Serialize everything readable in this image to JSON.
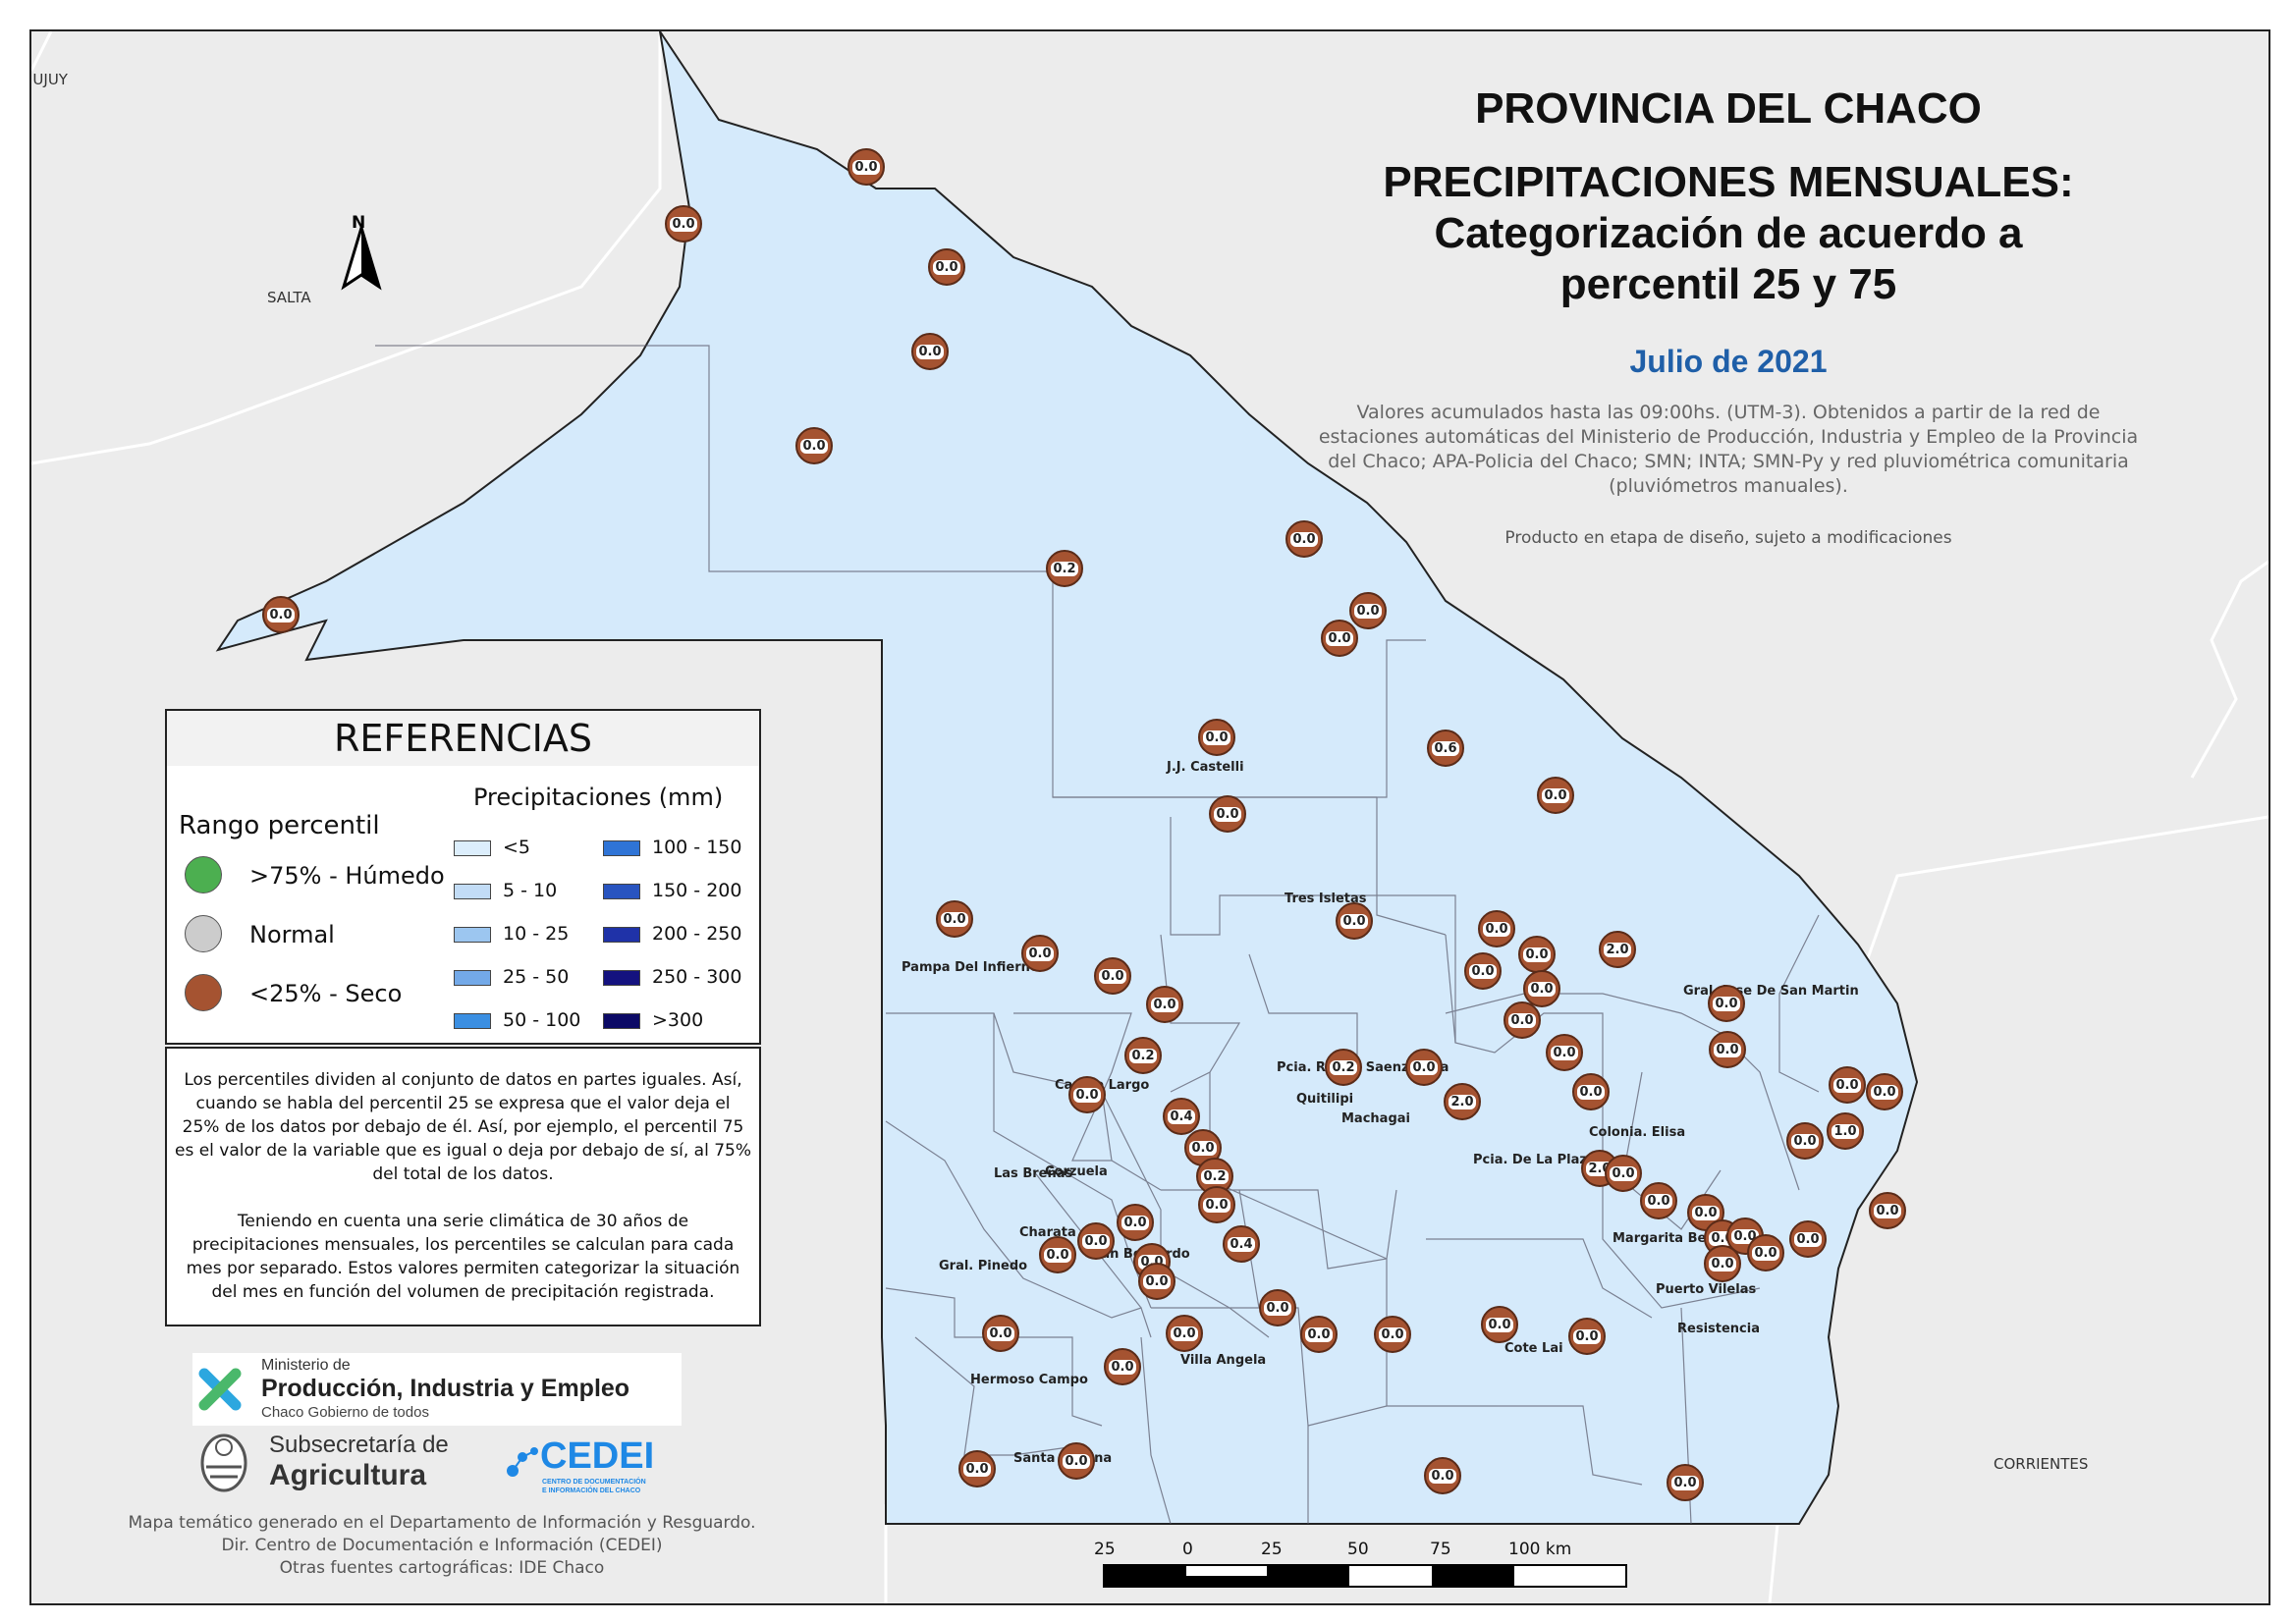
{
  "title": {
    "line1": "PROVINCIA DEL CHACO",
    "line2": "PRECIPITACIONES MENSUALES:",
    "line3": "Categorización de acuerdo a",
    "line4": "percentil 25 y 75",
    "month": "Julio de 2021"
  },
  "description": "Valores acumulados hasta las 09:00hs. (UTM-3). Obtenidos a partir de la red de estaciones automáticas del Ministerio de Producción, Industria y Empleo de la Provincia del Chaco; APA-Policia del Chaco; SMN; INTA; SMN-Py y red pluviométrica comunitaria (pluviómetros manuales).",
  "draft_note": "Producto en etapa de diseño, sujeto a modificaciones",
  "neighbors": {
    "jujuy": "JUJUY",
    "salta": "SALTA",
    "corrientes": "CORRIENTES"
  },
  "north_label": "N",
  "towns": [
    "J.J. Castelli",
    "Tres Isletas",
    "Pampa Del Infierno",
    "Pcia. Roque Saenz Peña",
    "Quitilipi",
    "Machagai",
    "Campo Largo",
    "Corzuela",
    "Las Breñas",
    "Charata",
    "Gral. Pinedo",
    "San Bernardo",
    "Villa Angela",
    "Hermoso Campo",
    "Santa Sylvina",
    "Gral. Jose De San Martin",
    "Pcia. De La Plaza",
    "Colonia. Elisa",
    "Margarita Belen",
    "Puerto Vilelas",
    "Resistencia",
    "Cote Lai"
  ],
  "stations": [
    "0.0",
    "0.0",
    "0.0",
    "0.0",
    "0.0",
    "0.0",
    "0.2",
    "0.0",
    "0.0",
    "0.0",
    "0.6",
    "0.0",
    "0.0",
    "0.0",
    "0.0",
    "0.0",
    "0.0",
    "0.0",
    "0.0",
    "0.0",
    "0.0",
    "2.0",
    "0.0",
    "0.0",
    "0.0",
    "0.2",
    "0.0",
    "2.0",
    "0.0",
    "0.0",
    "0.0",
    "0.0",
    "0.0",
    "0.0",
    "0.2",
    "0.0",
    "0.4",
    "0.0",
    "0.2",
    "0.0",
    "0.0",
    "0.0",
    "0.0",
    "0.0",
    "1.0",
    "2.0",
    "0.0",
    "0.0",
    "0.0",
    "0.0",
    "0.0",
    "0.0",
    "0.0",
    "0.0",
    "0.0",
    "0.4",
    "0.0",
    "0.0",
    "0.0",
    "0.0",
    "0.0",
    "0.0",
    "0.0",
    "0.0",
    "0.0",
    "0.0",
    "0.0",
    "0.0",
    "0.0",
    "0.0"
  ],
  "legend": {
    "title": "REFERENCIAS",
    "percentile_heading": "Rango percentil",
    "percentile_items": [
      {
        "label": ">75% - Húmedo",
        "color": "#4caf50"
      },
      {
        "label": "Normal",
        "color": "#cccccc"
      },
      {
        "label": "<25% - Seco",
        "color": "#a55331"
      }
    ],
    "precip_heading": "Precipitaciones (mm)",
    "precip_items": [
      {
        "label": "<5",
        "color": "#dceefc"
      },
      {
        "label": "5 - 10",
        "color": "#c2dcf6"
      },
      {
        "label": "10 - 25",
        "color": "#9cc6f0"
      },
      {
        "label": "25 - 50",
        "color": "#73a9e8"
      },
      {
        "label": "50 - 100",
        "color": "#3b8fe2"
      },
      {
        "label": "100 - 150",
        "color": "#2f74d6"
      },
      {
        "label": "150 - 200",
        "color": "#2854c0"
      },
      {
        "label": "200 - 250",
        "color": "#1f32a8"
      },
      {
        "label": "250 - 300",
        "color": "#14127f"
      },
      {
        "label": ">300",
        "color": "#0c0a66"
      }
    ]
  },
  "note": {
    "p1": "Los percentiles dividen al conjunto de datos en partes iguales. Así, cuando se habla del percentil 25 se expresa que el valor deja el 25% de los datos por debajo de él. Así, por ejemplo, el percentil 75 es el valor de la variable que es igual o deja por debajo de sí, al 75% del total de los datos.",
    "p2": "Teniendo en cuenta una serie climática de 30 años de precipitaciones mensuales, los percentiles se calculan para cada mes por separado. Estos valores permiten categorizar la situación del mes en función del volumen de precipitación registrada."
  },
  "logos": {
    "ministry_line1": "Ministerio de",
    "ministry_line2": "Producción, Industria y Empleo",
    "ministry_line3": "Chaco Gobierno de todos",
    "sub_line1": "Subsecretaría de",
    "sub_line2": "Agricultura",
    "cedei": "CEDEI",
    "cedei_sub1": "CENTRO DE DOCUMENTACIÓN",
    "cedei_sub2": "E INFORMACIÓN DEL CHACO"
  },
  "footer": {
    "line1": "Mapa temático generado en el Departamento de Información y Resguardo.",
    "line2": "Dir. Centro de Documentación e Información (CEDEI)",
    "line3": "Otras fuentes cartográficas: IDE Chaco"
  },
  "scale": {
    "labels": [
      "25",
      "0",
      "25",
      "50",
      "75",
      "100 km"
    ]
  },
  "colors": {
    "province_fill": "#d5eafb",
    "station_dry": "#a55331",
    "background": "#ececec",
    "month_title": "#1f5fa8"
  }
}
